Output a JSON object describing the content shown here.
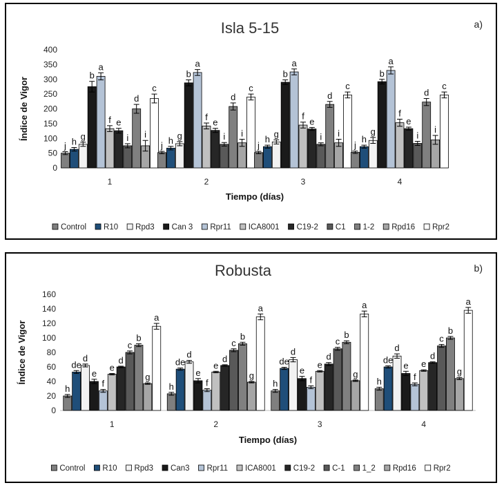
{
  "chart_data": [
    {
      "type": "bar",
      "title": "Isla 5-15",
      "panel_label": "a)",
      "xlabel": "Tiempo (días)",
      "ylabel": "Índice de Vigor",
      "ylim": [
        0,
        400
      ],
      "yticks": [
        0,
        50,
        100,
        150,
        200,
        250,
        300,
        350,
        400
      ],
      "categories": [
        "1",
        "2",
        "3",
        "4"
      ],
      "legend_position": "bottom",
      "grid": false,
      "error_bars": true,
      "series": [
        {
          "name": "Control",
          "color": "#7f7f7f",
          "values": [
            50,
            52,
            52,
            53
          ],
          "errors": [
            5,
            4,
            4,
            4
          ],
          "letters": [
            "j",
            "j",
            "j",
            "j"
          ]
        },
        {
          "name": "R10",
          "color": "#1f4e79",
          "values": [
            63,
            67,
            72,
            72
          ],
          "errors": [
            6,
            6,
            5,
            5
          ],
          "letters": [
            "h",
            "h",
            "h",
            "h"
          ]
        },
        {
          "name": "Rpd3",
          "color": "#f2f2f2",
          "values": [
            80,
            82,
            88,
            93
          ],
          "errors": [
            7,
            7,
            7,
            10
          ],
          "letters": [
            "g",
            "g",
            "g",
            "g"
          ]
        },
        {
          "name": "Can 3",
          "color": "#1a1a1a",
          "values": [
            275,
            288,
            290,
            292
          ],
          "errors": [
            18,
            10,
            8,
            8
          ],
          "letters": [
            "b",
            "b",
            "b",
            "b"
          ]
        },
        {
          "name": "Rpr11",
          "color": "#b4c3d6",
          "values": [
            310,
            323,
            325,
            330
          ],
          "errors": [
            12,
            10,
            10,
            12
          ],
          "letters": [
            "a",
            "a",
            "a",
            "a"
          ]
        },
        {
          "name": "ICA8001",
          "color": "#c0c0c0",
          "values": [
            133,
            142,
            145,
            153
          ],
          "errors": [
            10,
            10,
            10,
            12
          ],
          "letters": [
            "f",
            "f",
            "f",
            "f"
          ]
        },
        {
          "name": "C19-2",
          "color": "#262626",
          "values": [
            126,
            127,
            132,
            133
          ],
          "errors": [
            8,
            7,
            5,
            5
          ],
          "letters": [
            "e",
            "e",
            "e",
            "e"
          ]
        },
        {
          "name": "C1",
          "color": "#595959",
          "values": [
            75,
            80,
            80,
            83
          ],
          "errors": [
            7,
            6,
            5,
            7
          ],
          "letters": [
            "i",
            "i",
            "i",
            "i"
          ]
        },
        {
          "name": "1-2",
          "color": "#808080",
          "values": [
            200,
            208,
            215,
            223
          ],
          "errors": [
            15,
            12,
            10,
            12
          ],
          "letters": [
            "d",
            "d",
            "d",
            "d"
          ]
        },
        {
          "name": "Rpd16",
          "color": "#a6a6a6",
          "values": [
            75,
            85,
            85,
            95
          ],
          "errors": [
            18,
            12,
            12,
            15
          ],
          "letters": [
            "i",
            "i",
            "i",
            "i"
          ]
        },
        {
          "name": "Rpr2",
          "color": "#ffffff",
          "values": [
            235,
            240,
            247,
            247
          ],
          "errors": [
            15,
            10,
            10,
            10
          ],
          "letters": [
            "c",
            "c",
            "c",
            "c"
          ]
        }
      ]
    },
    {
      "type": "bar",
      "title": "Robusta",
      "panel_label": "b)",
      "xlabel": "Tiempo (días)",
      "ylabel": "Índice de Vigor",
      "ylim": [
        0,
        160
      ],
      "yticks": [
        0,
        20,
        40,
        60,
        80,
        100,
        120,
        140,
        160
      ],
      "categories": [
        "1",
        "2",
        "3",
        "4"
      ],
      "legend_position": "bottom",
      "grid": false,
      "error_bars": true,
      "series": [
        {
          "name": "Control",
          "color": "#7f7f7f",
          "values": [
            20,
            23,
            27,
            30
          ],
          "errors": [
            2,
            2,
            2,
            2
          ],
          "letters": [
            "h",
            "h",
            "h",
            "h"
          ]
        },
        {
          "name": "R10",
          "color": "#1f4e79",
          "values": [
            53,
            57,
            58,
            60
          ],
          "errors": [
            2,
            1.5,
            1.5,
            1.5
          ],
          "letters": [
            "de",
            "de",
            "de",
            "de"
          ]
        },
        {
          "name": "Rpd3",
          "color": "#f2f2f2",
          "values": [
            62,
            67,
            70,
            75
          ],
          "errors": [
            2,
            2,
            3,
            3
          ],
          "letters": [
            "d",
            "d",
            "d",
            "d"
          ]
        },
        {
          "name": "Can3",
          "color": "#1a1a1a",
          "values": [
            40,
            41,
            44,
            51
          ],
          "errors": [
            3,
            3,
            3,
            3
          ],
          "letters": [
            "e",
            "e",
            "e",
            "e"
          ]
        },
        {
          "name": "Rpr11",
          "color": "#b4c3d6",
          "values": [
            27,
            28,
            32,
            36
          ],
          "errors": [
            2,
            2,
            2,
            2
          ],
          "letters": [
            "f",
            "f",
            "f",
            "f"
          ]
        },
        {
          "name": "ICA8001",
          "color": "#c0c0c0",
          "values": [
            50,
            53,
            54,
            55
          ],
          "errors": [
            1,
            1,
            1,
            1
          ],
          "letters": [
            "e",
            "e",
            "e",
            "e"
          ]
        },
        {
          "name": "C19-2",
          "color": "#262626",
          "values": [
            60,
            62,
            64,
            66
          ],
          "errors": [
            1,
            1,
            2,
            1
          ],
          "letters": [
            "d",
            "d",
            "d",
            "d"
          ]
        },
        {
          "name": "C-1",
          "color": "#595959",
          "values": [
            80,
            83,
            85,
            89
          ],
          "errors": [
            2,
            2,
            2,
            2
          ],
          "letters": [
            "c",
            "c",
            "c",
            "c"
          ]
        },
        {
          "name": "1_2",
          "color": "#808080",
          "values": [
            90,
            92,
            94,
            100
          ],
          "errors": [
            2,
            2,
            2,
            2
          ],
          "letters": [
            "b",
            "b",
            "b",
            "b"
          ]
        },
        {
          "name": "Rpd16",
          "color": "#a6a6a6",
          "values": [
            37,
            39,
            41,
            44
          ],
          "errors": [
            1,
            1,
            1,
            1.5
          ],
          "letters": [
            "g",
            "g",
            "g",
            "g"
          ]
        },
        {
          "name": "Rpr2",
          "color": "#ffffff",
          "values": [
            116,
            129,
            133,
            138
          ],
          "errors": [
            4,
            4,
            4,
            4
          ],
          "letters": [
            "a",
            "a",
            "a",
            "a"
          ]
        }
      ]
    }
  ]
}
